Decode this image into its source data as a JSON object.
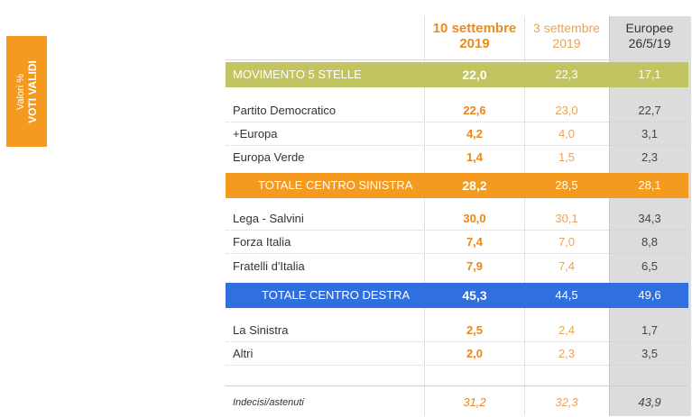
{
  "side_tag": {
    "line1": "Valori %",
    "line2": "VOTI VALIDI"
  },
  "headers": {
    "col1": [
      "10 settembre",
      "2019"
    ],
    "col2": [
      "3 settembre",
      "2019"
    ],
    "col3": [
      "Europee",
      "26/5/19"
    ]
  },
  "rows": [
    {
      "label": "MOVIMENTO 5 STELLE",
      "v1": "22,0",
      "v2": "22,3",
      "v3": "17,1"
    },
    {
      "label": "Partito Democratico",
      "v1": "22,6",
      "v2": "23,0",
      "v3": "22,7"
    },
    {
      "label": "+Europa",
      "v1": "4,2",
      "v2": "4,0",
      "v3": "3,1"
    },
    {
      "label": "Europa Verde",
      "v1": "1,4",
      "v2": "1,5",
      "v3": "2,3"
    },
    {
      "label": "TOTALE CENTRO SINISTRA",
      "v1": "28,2",
      "v2": "28,5",
      "v3": "28,1"
    },
    {
      "label": "Lega - Salvini",
      "v1": "30,0",
      "v2": "30,1",
      "v3": "34,3"
    },
    {
      "label": "Forza Italia",
      "v1": "7,4",
      "v2": "7,0",
      "v3": "8,8"
    },
    {
      "label": "Fratelli d'Italia",
      "v1": "7,9",
      "v2": "7,4",
      "v3": "6,5"
    },
    {
      "label": "TOTALE CENTRO DESTRA",
      "v1": "45,3",
      "v2": "44,5",
      "v3": "49,6"
    },
    {
      "label": "La Sinistra",
      "v1": "2,5",
      "v2": "2,4",
      "v3": "1,7"
    },
    {
      "label": "Altri",
      "v1": "2,0",
      "v2": "2,3",
      "v3": "3,5"
    },
    {
      "label": "Indecisi/astenuti",
      "v1": "31,2",
      "v2": "32,3",
      "v3": "43,9"
    }
  ],
  "colors": {
    "movimento_band": "#c2c45f",
    "centro_sinistra_band": "#f39a1f",
    "centro_destra_band": "#2f6fe0",
    "accent_orange": "#e8871b",
    "europee_column": "#dcdcdc"
  }
}
